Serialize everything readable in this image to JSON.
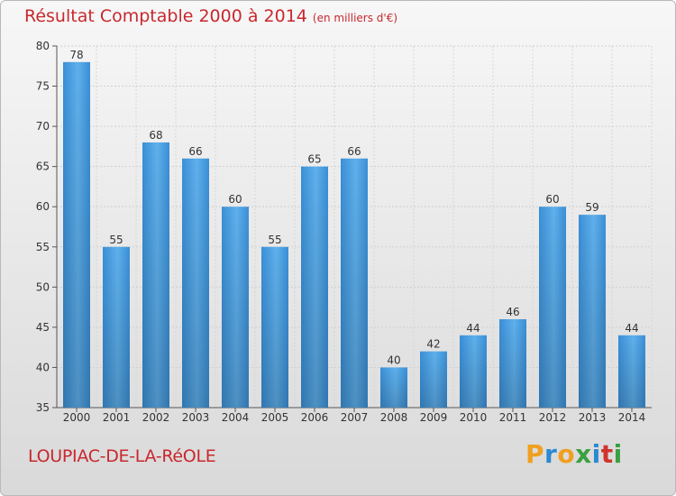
{
  "title": {
    "main": "Résultat Comptable 2000 à 2014",
    "unit": "(en milliers d'€)"
  },
  "commune": "LOUPIAC-DE-LA-RéOLE",
  "logo": {
    "letters": [
      "P",
      "r",
      "o",
      "x",
      "i",
      "t",
      "i"
    ],
    "colors": [
      "#f0a020",
      "#2a8ad0",
      "#f0a020",
      "#3aa040",
      "#2a8ad0",
      "#d0342c",
      "#3aa040"
    ]
  },
  "chart_data": {
    "type": "bar",
    "title": "Résultat Comptable 2000 à 2014",
    "ylabel": "(en milliers d'€)",
    "xlabel": "",
    "categories": [
      "2000",
      "2001",
      "2002",
      "2003",
      "2004",
      "2005",
      "2006",
      "2007",
      "2008",
      "2009",
      "2010",
      "2011",
      "2012",
      "2013",
      "2014"
    ],
    "values": [
      78,
      55,
      68,
      66,
      60,
      55,
      65,
      66,
      40,
      42,
      44,
      46,
      60,
      59,
      44
    ],
    "ylim": [
      35,
      80
    ],
    "yticks": [
      35,
      40,
      45,
      50,
      55,
      60,
      65,
      70,
      75,
      80
    ],
    "grid": true,
    "bar_color": "#4a9fe0"
  }
}
